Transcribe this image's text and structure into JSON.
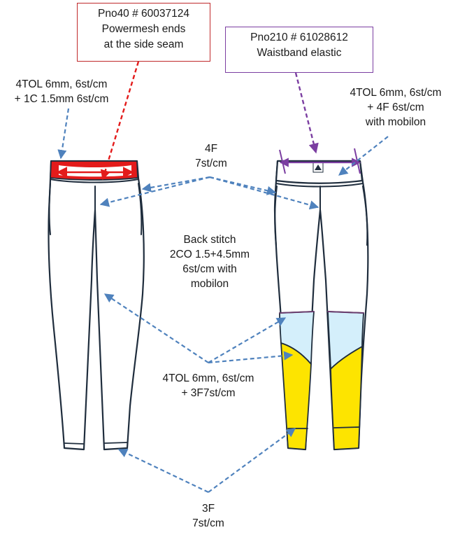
{
  "callouts": {
    "powermesh": {
      "lines": [
        "Pno40 # 60037124",
        "Powermesh  ends",
        "at the side seam"
      ],
      "color": "#c0292b"
    },
    "waistband": {
      "lines": [
        "Pno210 # 61028612",
        "Waistband elastic"
      ],
      "color": "#7b3ea1"
    }
  },
  "labels": {
    "tol_front": [
      "4TOL 6mm, 6st/cm",
      "+ 1C 1.5mm 6st/cm"
    ],
    "tol_back": [
      "4TOL 6mm, 6st/cm",
      "+ 4F 6st/cm",
      "with mobilon"
    ],
    "f4": [
      "4F",
      "7st/cm"
    ],
    "back_stitch": [
      "Back stitch",
      "2CO 1.5+4.5mm",
      "6st/cm with",
      "mobilon"
    ],
    "tol_mid": [
      "4TOL 6mm, 6st/cm",
      "+ 3F7st/cm"
    ],
    "f3": [
      "3F",
      "7st/cm"
    ]
  },
  "colors": {
    "line": "#1f2d3d",
    "arrow_blue": "#4f82bd",
    "arrow_red": "#e31b1b",
    "arrow_purple": "#7b3ea1",
    "waistband_red": "#e31b1b",
    "panel_light_blue": "#d4effb",
    "panel_yellow": "#fde400",
    "seam_purple": "#6a3d6e"
  }
}
